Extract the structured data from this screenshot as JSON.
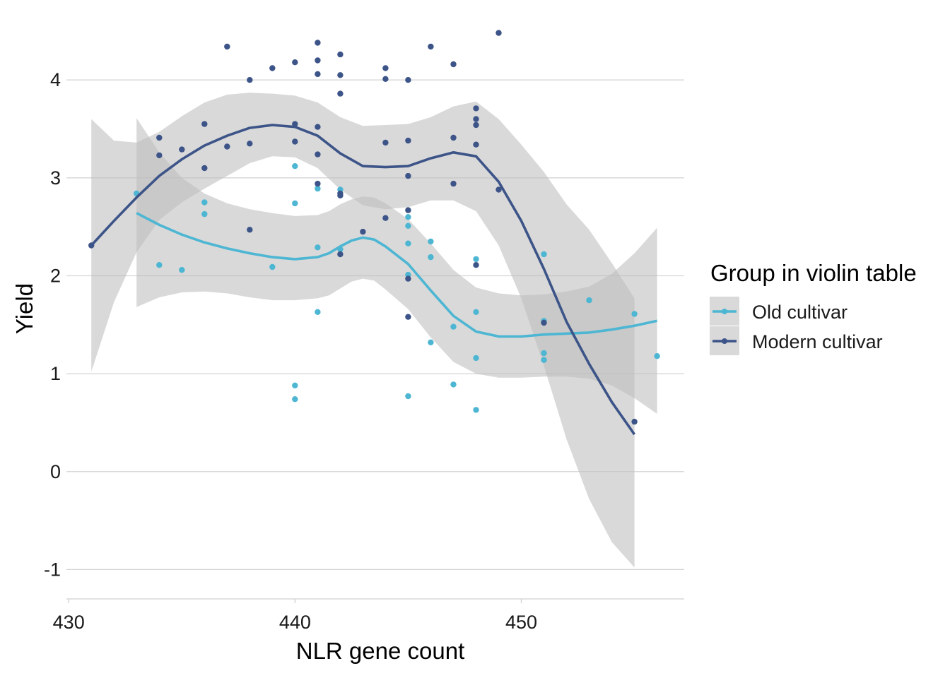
{
  "chart_data": {
    "type": "scatter",
    "xlabel": "NLR gene count",
    "ylabel": "Yield",
    "xlim": [
      429.9,
      457.2
    ],
    "ylim": [
      -1.3,
      4.6
    ],
    "x_ticks": [
      "430",
      "440",
      "450"
    ],
    "x_tick_values": [
      430,
      440,
      450
    ],
    "y_ticks": [
      "-1",
      "0",
      "1",
      "2",
      "3",
      "4"
    ],
    "y_tick_values": [
      -1,
      0,
      1,
      2,
      3,
      4
    ],
    "grid": "horizontal",
    "legend": {
      "title": "Group in violin table",
      "position": "right",
      "entries": [
        "Old cultivar",
        "Modern cultivar"
      ]
    },
    "band_color": "#bdbdbd",
    "series": [
      {
        "name": "Old cultivar",
        "color": "#4db6d3",
        "points": [
          [
            433,
            2.84
          ],
          [
            434,
            2.11
          ],
          [
            435,
            2.06
          ],
          [
            436,
            2.75
          ],
          [
            436,
            2.63
          ],
          [
            439,
            2.09
          ],
          [
            440,
            3.12
          ],
          [
            440,
            2.74
          ],
          [
            440,
            0.88
          ],
          [
            440,
            0.74
          ],
          [
            441,
            2.89
          ],
          [
            441,
            2.29
          ],
          [
            441,
            1.63
          ],
          [
            442,
            2.88
          ],
          [
            442,
            2.27
          ],
          [
            445,
            2.6
          ],
          [
            445,
            2.51
          ],
          [
            445,
            2.33
          ],
          [
            445,
            2.01
          ],
          [
            445,
            0.77
          ],
          [
            446,
            2.35
          ],
          [
            446,
            2.19
          ],
          [
            446,
            1.32
          ],
          [
            447,
            1.48
          ],
          [
            447,
            0.89
          ],
          [
            448,
            2.17
          ],
          [
            448,
            1.63
          ],
          [
            448,
            1.16
          ],
          [
            448,
            0.63
          ],
          [
            451,
            2.22
          ],
          [
            451,
            1.54
          ],
          [
            451,
            1.21
          ],
          [
            451,
            1.14
          ],
          [
            453,
            1.75
          ],
          [
            455,
            1.61
          ],
          [
            456,
            1.18
          ]
        ],
        "smooth": {
          "x": [
            433,
            434,
            435,
            436,
            437,
            438,
            439,
            440,
            441,
            441.5,
            442,
            442.5,
            443,
            443.5,
            444,
            445,
            446,
            447,
            448,
            449,
            450,
            451,
            452,
            453,
            454,
            455,
            456
          ],
          "y": [
            2.64,
            2.52,
            2.42,
            2.34,
            2.28,
            2.23,
            2.19,
            2.17,
            2.19,
            2.23,
            2.3,
            2.36,
            2.39,
            2.37,
            2.3,
            2.12,
            1.85,
            1.59,
            1.43,
            1.38,
            1.38,
            1.4,
            1.41,
            1.42,
            1.45,
            1.49,
            1.54
          ],
          "lower": [
            1.68,
            1.78,
            1.83,
            1.84,
            1.82,
            1.78,
            1.75,
            1.75,
            1.77,
            1.8,
            1.87,
            1.94,
            1.97,
            1.95,
            1.86,
            1.66,
            1.37,
            1.12,
            1.0,
            0.96,
            0.96,
            0.97,
            0.97,
            0.95,
            0.88,
            0.75,
            0.59
          ],
          "upper": [
            3.61,
            3.26,
            3.0,
            2.84,
            2.74,
            2.68,
            2.64,
            2.61,
            2.62,
            2.66,
            2.73,
            2.78,
            2.81,
            2.8,
            2.74,
            2.58,
            2.33,
            2.06,
            1.88,
            1.82,
            1.8,
            1.81,
            1.84,
            1.89,
            2.02,
            2.23,
            2.49
          ]
        }
      },
      {
        "name": "Modern cultivar",
        "color": "#3c5488",
        "points": [
          [
            431,
            2.31
          ],
          [
            434,
            3.41
          ],
          [
            434,
            3.23
          ],
          [
            435,
            3.29
          ],
          [
            436,
            3.55
          ],
          [
            436,
            3.1
          ],
          [
            437,
            4.34
          ],
          [
            437,
            3.32
          ],
          [
            438,
            4.0
          ],
          [
            438,
            3.35
          ],
          [
            438,
            2.47
          ],
          [
            439,
            4.12
          ],
          [
            440,
            4.18
          ],
          [
            440,
            3.55
          ],
          [
            440,
            3.37
          ],
          [
            441,
            4.38
          ],
          [
            441,
            4.2
          ],
          [
            441,
            4.06
          ],
          [
            441,
            3.52
          ],
          [
            441,
            3.24
          ],
          [
            441,
            2.94
          ],
          [
            442,
            4.26
          ],
          [
            442,
            4.05
          ],
          [
            442,
            3.86
          ],
          [
            442,
            2.84
          ],
          [
            442,
            2.82
          ],
          [
            442,
            2.22
          ],
          [
            443,
            2.45
          ],
          [
            444,
            4.12
          ],
          [
            444,
            4.01
          ],
          [
            444,
            3.36
          ],
          [
            444,
            2.59
          ],
          [
            445,
            4.0
          ],
          [
            445,
            3.38
          ],
          [
            445,
            3.02
          ],
          [
            445,
            2.67
          ],
          [
            445,
            1.97
          ],
          [
            445,
            1.58
          ],
          [
            446,
            4.34
          ],
          [
            447,
            4.16
          ],
          [
            447,
            3.41
          ],
          [
            447,
            2.94
          ],
          [
            448,
            3.71
          ],
          [
            448,
            3.6
          ],
          [
            448,
            3.54
          ],
          [
            448,
            3.34
          ],
          [
            448,
            2.11
          ],
          [
            449,
            4.48
          ],
          [
            449,
            2.88
          ],
          [
            451,
            1.52
          ],
          [
            455,
            0.51
          ]
        ],
        "smooth": {
          "x": [
            431,
            432,
            433,
            434,
            435,
            436,
            437,
            438,
            439,
            440,
            441,
            442,
            443,
            444,
            445,
            446,
            447,
            448,
            449,
            450,
            451,
            452,
            453,
            454,
            455
          ],
          "y": [
            2.31,
            2.56,
            2.8,
            3.02,
            3.19,
            3.33,
            3.43,
            3.51,
            3.54,
            3.52,
            3.43,
            3.25,
            3.12,
            3.11,
            3.12,
            3.2,
            3.26,
            3.22,
            2.96,
            2.56,
            2.07,
            1.53,
            1.1,
            0.71,
            0.38
          ],
          "lower": [
            1.02,
            1.73,
            2.24,
            2.57,
            2.75,
            2.89,
            3.02,
            3.15,
            3.22,
            3.21,
            3.1,
            2.88,
            2.72,
            2.68,
            2.7,
            2.77,
            2.77,
            2.66,
            2.31,
            1.77,
            1.08,
            0.33,
            -0.28,
            -0.72,
            -0.98
          ],
          "upper": [
            3.6,
            3.38,
            3.36,
            3.47,
            3.63,
            3.77,
            3.85,
            3.87,
            3.86,
            3.84,
            3.77,
            3.62,
            3.53,
            3.54,
            3.55,
            3.62,
            3.73,
            3.78,
            3.6,
            3.34,
            3.06,
            2.73,
            2.47,
            2.13,
            1.77
          ]
        }
      }
    ]
  }
}
